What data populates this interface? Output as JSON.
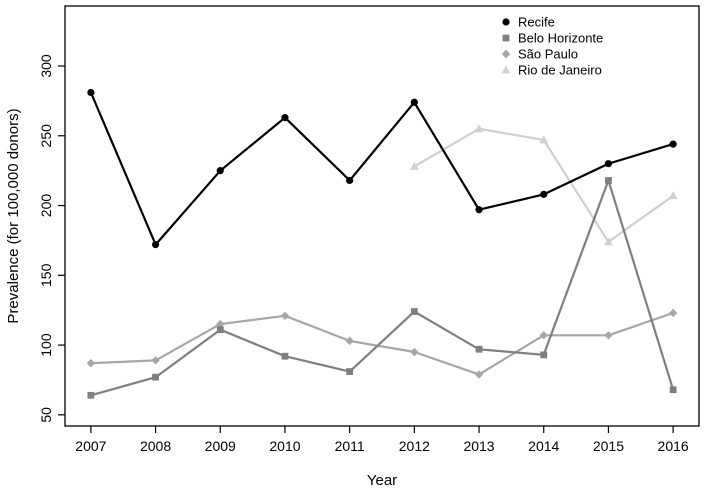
{
  "chart_data": {
    "type": "line",
    "xlabel": "Year",
    "ylabel": "Prevalence (for 100,000 donors)",
    "x": [
      2007,
      2008,
      2009,
      2010,
      2011,
      2012,
      2013,
      2014,
      2015,
      2016
    ],
    "x_tick_labels": [
      "2007",
      "2008",
      "2009",
      "2010",
      "2011",
      "2012",
      "2013",
      "2014",
      "2015",
      "2016"
    ],
    "y_ticks": [
      50,
      100,
      150,
      200,
      250,
      300
    ],
    "y_tick_labels": [
      "50",
      "100",
      "150",
      "200",
      "250",
      "300"
    ],
    "xlim": [
      2006.6,
      2016.4
    ],
    "ylim": [
      42,
      343
    ],
    "grid": false,
    "legend_position": "top-right",
    "series": [
      {
        "name": "Recife",
        "color": "#000000",
        "marker": "circle",
        "values": [
          281,
          172,
          225,
          263,
          218,
          274,
          197,
          208,
          230,
          244
        ]
      },
      {
        "name": "Belo Horizonte",
        "color": "#7f7f7f",
        "marker": "square",
        "values": [
          64,
          77,
          111,
          92,
          81,
          124,
          97,
          93,
          218,
          68
        ]
      },
      {
        "name": "São Paulo",
        "color": "#a6a6a6",
        "marker": "diamond",
        "values": [
          87,
          89,
          115,
          121,
          103,
          95,
          79,
          107,
          107,
          123
        ]
      },
      {
        "name": "Rio de Janeiro",
        "color": "#cfcfcf",
        "marker": "triangle",
        "values": [
          null,
          null,
          null,
          null,
          null,
          228,
          255,
          247,
          174,
          207
        ]
      }
    ]
  }
}
